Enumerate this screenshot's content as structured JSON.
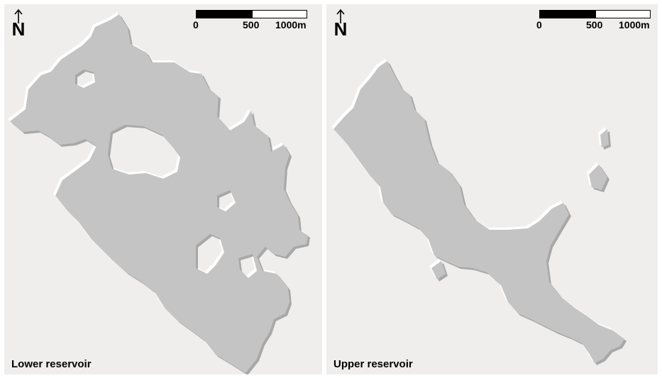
{
  "panels": [
    {
      "label": "Lower reservoir",
      "north_label": "N",
      "scale_ticks": [
        "0",
        "500",
        "1000m"
      ]
    },
    {
      "label": "Upper reservoir",
      "north_label": "N",
      "scale_ticks": [
        "0",
        "500",
        "1000m"
      ]
    }
  ],
  "colors": {
    "background": "#efeeed",
    "reservoir_fill": "#c4c4c4",
    "reservoir_edge_highlight": "#ffffff",
    "reservoir_edge_shadow": "#9a9a9a"
  }
}
